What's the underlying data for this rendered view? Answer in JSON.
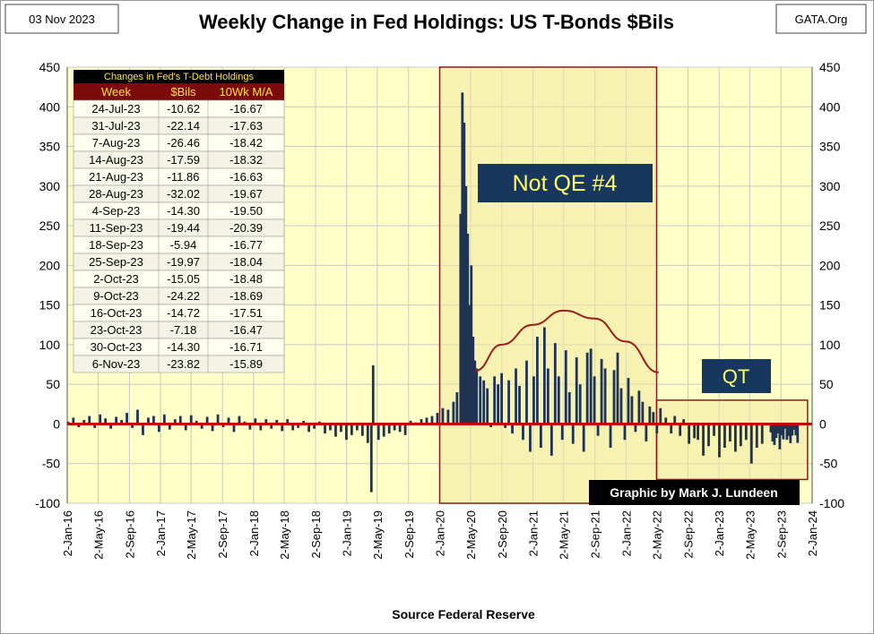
{
  "header": {
    "date": "03 Nov 2023",
    "title": "Weekly Change in Fed Holdings: US T-Bonds $Bils",
    "source_tag": "GATA.Org"
  },
  "footer": {
    "source": "Source  Federal Reserve",
    "credit": "Graphic by Mark J. Lundeen"
  },
  "annotations": {
    "not_qe": "Not QE #4",
    "qt": "QT"
  },
  "colors": {
    "plot_bg": "#ffffc8",
    "table_bg": "#fffff0",
    "table_header": "#7b0a0a",
    "table_header_text": "#ffe14a",
    "bar": "#1f3450",
    "zero_line": "#c00000",
    "arc": "#9b1c1c",
    "box_fill": "#f0e6a0",
    "box_border": "#8b1a1a",
    "label_bg": "#17375e",
    "label_text": "#ffff66"
  },
  "table": {
    "caption": "Changes in Fed's T-Debt Holdings",
    "columns": [
      "Week",
      "$Bils",
      "10Wk M/A"
    ],
    "rows": [
      [
        "24-Jul-23",
        "-10.62",
        "-16.67"
      ],
      [
        "31-Jul-23",
        "-22.14",
        "-17.63"
      ],
      [
        "7-Aug-23",
        "-26.46",
        "-18.42"
      ],
      [
        "14-Aug-23",
        "-17.59",
        "-18.32"
      ],
      [
        "21-Aug-23",
        "-11.86",
        "-16.63"
      ],
      [
        "28-Aug-23",
        "-32.02",
        "-19.67"
      ],
      [
        "4-Sep-23",
        "-14.30",
        "-19.50"
      ],
      [
        "11-Sep-23",
        "-19.44",
        "-20.39"
      ],
      [
        "18-Sep-23",
        "-5.94",
        "-16.77"
      ],
      [
        "25-Sep-23",
        "-19.97",
        "-18.04"
      ],
      [
        "2-Oct-23",
        "-15.05",
        "-18.48"
      ],
      [
        "9-Oct-23",
        "-24.22",
        "-18.69"
      ],
      [
        "16-Oct-23",
        "-14.72",
        "-17.51"
      ],
      [
        "23-Oct-23",
        "-7.18",
        "-16.47"
      ],
      [
        "30-Oct-23",
        "-14.30",
        "-16.71"
      ],
      [
        "6-Nov-23",
        "-23.82",
        "-15.89"
      ]
    ]
  },
  "chart_data": {
    "type": "bar",
    "title": "Weekly Change in Fed Holdings: US T-Bonds $Bils",
    "ylim": [
      -100,
      450
    ],
    "yticks": [
      -100,
      -50,
      0,
      50,
      100,
      150,
      200,
      250,
      300,
      350,
      400,
      450
    ],
    "xlim": [
      "2016-01-02",
      "2024-01-02"
    ],
    "xtick_labels": [
      "2-Jan-16",
      "2-May-16",
      "2-Sep-16",
      "2-Jan-17",
      "2-May-17",
      "2-Sep-17",
      "2-Jan-18",
      "2-May-18",
      "2-Sep-18",
      "2-Jan-19",
      "2-May-19",
      "2-Sep-19",
      "2-Jan-20",
      "2-May-20",
      "2-Sep-20",
      "2-Jan-21",
      "2-May-21",
      "2-Sep-21",
      "2-Jan-22",
      "2-May-22",
      "2-Sep-22",
      "2-Jan-23",
      "2-May-23",
      "2-Sep-23",
      "2-Jan-24"
    ],
    "grid": true,
    "regions": [
      {
        "label": "Not QE #4",
        "x": [
          "2020-01-02",
          "2022-05-02"
        ],
        "y": [
          -100,
          450
        ]
      },
      {
        "label": "QT",
        "x": [
          "2022-05-02",
          "2023-12-15"
        ],
        "y": [
          -70,
          30
        ]
      }
    ],
    "trend_arc": [
      [
        "2020-05-20",
        67
      ],
      [
        "2020-09-01",
        100
      ],
      [
        "2021-01-01",
        125
      ],
      [
        "2021-05-02",
        143
      ],
      [
        "2021-09-01",
        133
      ],
      [
        "2022-01-01",
        104
      ],
      [
        "2022-05-10",
        65
      ]
    ],
    "series": [
      {
        "values": [
          [
            "2016-01-05",
            3
          ],
          [
            "2016-01-26",
            8
          ],
          [
            "2016-02-16",
            -4
          ],
          [
            "2016-03-08",
            5
          ],
          [
            "2016-03-29",
            10
          ],
          [
            "2016-04-19",
            -5
          ],
          [
            "2016-05-10",
            12
          ],
          [
            "2016-05-31",
            7
          ],
          [
            "2016-06-21",
            -6
          ],
          [
            "2016-07-12",
            9
          ],
          [
            "2016-08-02",
            5
          ],
          [
            "2016-08-23",
            14
          ],
          [
            "2016-09-13",
            -5
          ],
          [
            "2016-10-04",
            18
          ],
          [
            "2016-10-25",
            -14
          ],
          [
            "2016-11-15",
            8
          ],
          [
            "2016-12-06",
            10
          ],
          [
            "2016-12-27",
            -10
          ],
          [
            "2017-01-17",
            12
          ],
          [
            "2017-02-07",
            -7
          ],
          [
            "2017-02-28",
            6
          ],
          [
            "2017-03-21",
            10
          ],
          [
            "2017-04-11",
            -8
          ],
          [
            "2017-05-02",
            11
          ],
          [
            "2017-05-23",
            4
          ],
          [
            "2017-06-13",
            -6
          ],
          [
            "2017-07-04",
            9
          ],
          [
            "2017-07-25",
            -9
          ],
          [
            "2017-08-15",
            12
          ],
          [
            "2017-09-05",
            -4
          ],
          [
            "2017-09-26",
            8
          ],
          [
            "2017-10-17",
            -10
          ],
          [
            "2017-11-07",
            10
          ],
          [
            "2017-11-28",
            3
          ],
          [
            "2017-12-19",
            -7
          ],
          [
            "2018-01-09",
            7
          ],
          [
            "2018-01-30",
            -8
          ],
          [
            "2018-02-20",
            6
          ],
          [
            "2018-03-13",
            -6
          ],
          [
            "2018-04-03",
            5
          ],
          [
            "2018-04-24",
            -9
          ],
          [
            "2018-05-15",
            6
          ],
          [
            "2018-06-05",
            -8
          ],
          [
            "2018-06-26",
            -5
          ],
          [
            "2018-07-17",
            4
          ],
          [
            "2018-08-07",
            -10
          ],
          [
            "2018-08-28",
            -6
          ],
          [
            "2018-09-18",
            3
          ],
          [
            "2018-10-09",
            -12
          ],
          [
            "2018-10-30",
            -8
          ],
          [
            "2018-11-20",
            -16
          ],
          [
            "2018-12-11",
            -10
          ],
          [
            "2019-01-01",
            -20
          ],
          [
            "2019-01-22",
            -14
          ],
          [
            "2019-02-12",
            -8
          ],
          [
            "2019-03-05",
            -15
          ],
          [
            "2019-03-26",
            -24
          ],
          [
            "2019-04-09",
            -86
          ],
          [
            "2019-04-16",
            74
          ],
          [
            "2019-05-07",
            -20
          ],
          [
            "2019-05-28",
            -16
          ],
          [
            "2019-06-18",
            -12
          ],
          [
            "2019-07-09",
            -8
          ],
          [
            "2019-07-30",
            -10
          ],
          [
            "2019-08-20",
            -14
          ],
          [
            "2019-09-10",
            4
          ],
          [
            "2019-10-01",
            2
          ],
          [
            "2019-10-22",
            6
          ],
          [
            "2019-11-12",
            8
          ],
          [
            "2019-12-03",
            10
          ],
          [
            "2019-12-24",
            14
          ],
          [
            "2020-01-14",
            20
          ],
          [
            "2020-02-04",
            18
          ],
          [
            "2020-02-25",
            28
          ],
          [
            "2020-03-10",
            40
          ],
          [
            "2020-03-24",
            265
          ],
          [
            "2020-03-31",
            418
          ],
          [
            "2020-04-07",
            380
          ],
          [
            "2020-04-14",
            300
          ],
          [
            "2020-04-21",
            240
          ],
          [
            "2020-04-28",
            150
          ],
          [
            "2020-05-05",
            200
          ],
          [
            "2020-05-12",
            110
          ],
          [
            "2020-05-19",
            80
          ],
          [
            "2020-05-26",
            70
          ],
          [
            "2020-06-09",
            60
          ],
          [
            "2020-06-23",
            55
          ],
          [
            "2020-07-07",
            45
          ],
          [
            "2020-07-21",
            -4
          ],
          [
            "2020-08-04",
            60
          ],
          [
            "2020-08-18",
            50
          ],
          [
            "2020-09-01",
            64
          ],
          [
            "2020-09-15",
            -5
          ],
          [
            "2020-09-29",
            55
          ],
          [
            "2020-10-13",
            -12
          ],
          [
            "2020-10-27",
            70
          ],
          [
            "2020-11-10",
            48
          ],
          [
            "2020-11-24",
            -20
          ],
          [
            "2020-12-08",
            80
          ],
          [
            "2020-12-22",
            -35
          ],
          [
            "2021-01-05",
            60
          ],
          [
            "2021-01-19",
            110
          ],
          [
            "2021-02-02",
            -30
          ],
          [
            "2021-02-16",
            122
          ],
          [
            "2021-03-02",
            70
          ],
          [
            "2021-03-16",
            -40
          ],
          [
            "2021-03-30",
            102
          ],
          [
            "2021-04-13",
            60
          ],
          [
            "2021-04-27",
            -20
          ],
          [
            "2021-05-11",
            93
          ],
          [
            "2021-05-25",
            40
          ],
          [
            "2021-06-08",
            -25
          ],
          [
            "2021-06-22",
            84
          ],
          [
            "2021-07-06",
            50
          ],
          [
            "2021-07-20",
            -35
          ],
          [
            "2021-08-03",
            90
          ],
          [
            "2021-08-17",
            95
          ],
          [
            "2021-08-31",
            60
          ],
          [
            "2021-09-14",
            -15
          ],
          [
            "2021-09-28",
            82
          ],
          [
            "2021-10-12",
            70
          ],
          [
            "2021-11-02",
            -30
          ],
          [
            "2021-11-16",
            68
          ],
          [
            "2021-11-30",
            90
          ],
          [
            "2021-12-14",
            45
          ],
          [
            "2021-12-28",
            -20
          ],
          [
            "2022-01-11",
            58
          ],
          [
            "2022-01-25",
            35
          ],
          [
            "2022-02-08",
            -10
          ],
          [
            "2022-02-22",
            42
          ],
          [
            "2022-03-08",
            28
          ],
          [
            "2022-03-22",
            -22
          ],
          [
            "2022-04-05",
            22
          ],
          [
            "2022-04-19",
            15
          ],
          [
            "2022-05-03",
            -12
          ],
          [
            "2022-05-17",
            20
          ],
          [
            "2022-06-07",
            8
          ],
          [
            "2022-06-28",
            -12
          ],
          [
            "2022-07-12",
            10
          ],
          [
            "2022-08-02",
            -15
          ],
          [
            "2022-08-16",
            6
          ],
          [
            "2022-09-06",
            -25
          ],
          [
            "2022-09-27",
            -18
          ],
          [
            "2022-10-11",
            -20
          ],
          [
            "2022-11-01",
            -40
          ],
          [
            "2022-11-22",
            -28
          ],
          [
            "2022-12-13",
            -15
          ],
          [
            "2023-01-03",
            -42
          ],
          [
            "2023-01-24",
            -30
          ],
          [
            "2023-02-14",
            -22
          ],
          [
            "2023-03-07",
            -35
          ],
          [
            "2023-03-28",
            -28
          ],
          [
            "2023-04-18",
            -20
          ],
          [
            "2023-05-09",
            -50
          ],
          [
            "2023-05-30",
            -30
          ],
          [
            "2023-06-20",
            -25
          ],
          [
            "2023-07-24",
            -10.62
          ],
          [
            "2023-07-31",
            -22.14
          ],
          [
            "2023-08-07",
            -26.46
          ],
          [
            "2023-08-14",
            -17.59
          ],
          [
            "2023-08-21",
            -11.86
          ],
          [
            "2023-08-28",
            -32.02
          ],
          [
            "2023-09-04",
            -14.3
          ],
          [
            "2023-09-11",
            -19.44
          ],
          [
            "2023-09-18",
            -5.94
          ],
          [
            "2023-09-25",
            -19.97
          ],
          [
            "2023-10-02",
            -15.05
          ],
          [
            "2023-10-09",
            -24.22
          ],
          [
            "2023-10-16",
            -14.72
          ],
          [
            "2023-10-23",
            -7.18
          ],
          [
            "2023-10-30",
            -14.3
          ],
          [
            "2023-11-06",
            -23.82
          ]
        ]
      }
    ]
  }
}
